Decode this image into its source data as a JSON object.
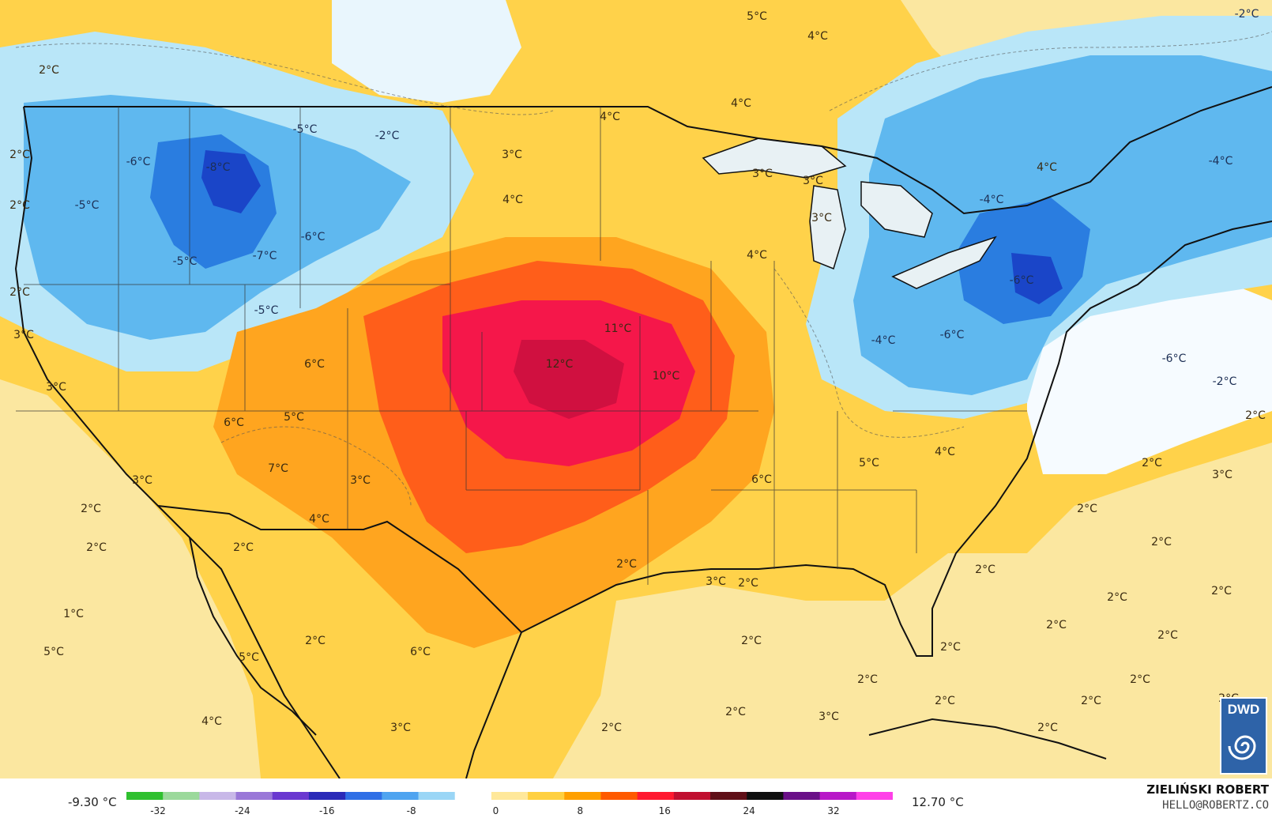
{
  "legend": {
    "min_label": "-9.30 °C",
    "max_label": "12.70 °C",
    "ticks": [
      "-32",
      "-24",
      "-16",
      "-8",
      "0",
      "8",
      "16",
      "24",
      "32"
    ],
    "colors": [
      "#2fc02f",
      "#9bd99b",
      "#c8b8e8",
      "#9a78d8",
      "#6a38d0",
      "#2a2ab8",
      "#2f6fe6",
      "#4fa4f0",
      "#9ad6f6",
      "#ffffff",
      "#ffe89a",
      "#ffd040",
      "#ffa000",
      "#ff5a00",
      "#ff1a30",
      "#c01030",
      "#601018",
      "#101010",
      "#6a1088",
      "#b818c8",
      "#ff40e8"
    ]
  },
  "credit": {
    "name": "ZIELIŃSKI ROBERT",
    "email": "HELLO@ROBERTZ.CO"
  },
  "logo": {
    "text": "DWD"
  },
  "map": {
    "colors": {
      "sea_warm": "#fbe7a0",
      "warm": "#ffd24a",
      "orange": "#ffa51f",
      "hot": "#ff5e1a",
      "hottest": "#f5174a",
      "cold_light": "#b9e6f8",
      "cold": "#5fb8ef",
      "colder": "#2a7de0",
      "coldest": "#1a45c8",
      "border": "#111111"
    },
    "labels": [
      {
        "t": "5°C"
      },
      {
        "t": "4°C"
      },
      {
        "t": "4°C"
      },
      {
        "t": "4°C"
      },
      {
        "t": "-2°C"
      },
      {
        "t": "2°C"
      },
      {
        "t": "2°C"
      },
      {
        "t": "-5°C"
      },
      {
        "t": "-2°C"
      },
      {
        "t": "-6°C"
      },
      {
        "t": "-8°C"
      },
      {
        "t": "-5°C"
      },
      {
        "t": "-6°C"
      },
      {
        "t": "-7°C"
      },
      {
        "t": "-5°C"
      },
      {
        "t": "-5°C"
      },
      {
        "t": "2°C"
      },
      {
        "t": "3°C"
      },
      {
        "t": "3°C"
      },
      {
        "t": "3°C"
      },
      {
        "t": "3°C"
      },
      {
        "t": "4°C"
      },
      {
        "t": "3°C"
      },
      {
        "t": "4°C"
      },
      {
        "t": "4°C"
      },
      {
        "t": "-4°C"
      },
      {
        "t": "-4°C"
      },
      {
        "t": "-6°C"
      },
      {
        "t": "-6°C"
      },
      {
        "t": "-4°C"
      },
      {
        "t": "-6°C"
      },
      {
        "t": "-2°C"
      },
      {
        "t": "2°C"
      },
      {
        "t": "11°C"
      },
      {
        "t": "12°C"
      },
      {
        "t": "10°C"
      },
      {
        "t": "6°C"
      },
      {
        "t": "3°C"
      },
      {
        "t": "5°C"
      },
      {
        "t": "6°C"
      },
      {
        "t": "7°C"
      },
      {
        "t": "3°C"
      },
      {
        "t": "3°C"
      },
      {
        "t": "4°C"
      },
      {
        "t": "2°C"
      },
      {
        "t": "2°C"
      },
      {
        "t": "2°C"
      },
      {
        "t": "6°C"
      },
      {
        "t": "5°C"
      },
      {
        "t": "4°C"
      },
      {
        "t": "2°C"
      },
      {
        "t": "3°C"
      },
      {
        "t": "2°C"
      },
      {
        "t": "2°C"
      },
      {
        "t": "2°C"
      },
      {
        "t": "5°C"
      },
      {
        "t": "3°C"
      },
      {
        "t": "2°C"
      },
      {
        "t": "2°C"
      },
      {
        "t": "2°C"
      },
      {
        "t": "2°C"
      },
      {
        "t": "2°C"
      },
      {
        "t": "2°C"
      },
      {
        "t": "2°C"
      },
      {
        "t": "2°C"
      },
      {
        "t": "2°C"
      },
      {
        "t": "2°C"
      },
      {
        "t": "2°C"
      },
      {
        "t": "1°C"
      },
      {
        "t": "2°C"
      },
      {
        "t": "5°C"
      },
      {
        "t": "6°C"
      },
      {
        "t": "4°C"
      },
      {
        "t": "3°C"
      },
      {
        "t": "2°C"
      },
      {
        "t": "2°C"
      },
      {
        "t": "3°C"
      },
      {
        "t": "2°C"
      },
      {
        "t": "2°C"
      },
      {
        "t": "2°C"
      },
      {
        "t": "2°C"
      }
    ]
  }
}
